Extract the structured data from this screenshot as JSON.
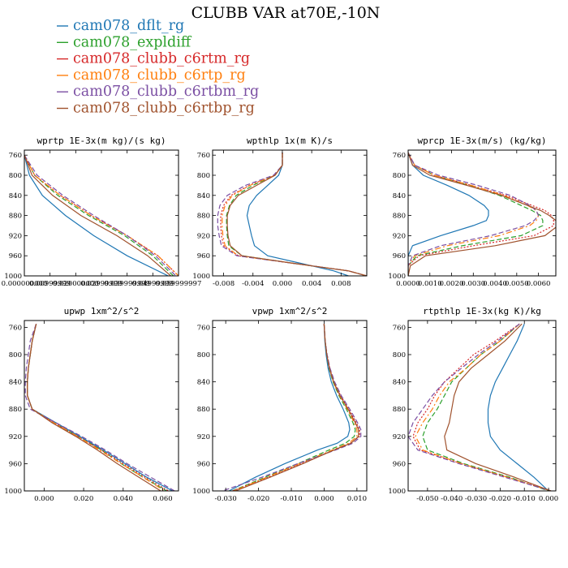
{
  "title": "CLUBB VAR at70E,-10N",
  "chart_data": {
    "series_styles": [
      {
        "name": "cam078_dflt_rg",
        "color": "#1f77b4",
        "dash": "solid"
      },
      {
        "name": "cam078_expldiff",
        "color": "#2ca02c",
        "dash": "dashed"
      },
      {
        "name": "cam078_clubb_c6rtm_rg",
        "color": "#d62728",
        "dash": "dotted"
      },
      {
        "name": "cam078_clubb_c6rtp_rg",
        "color": "#ff7f0e",
        "dash": "dashdot"
      },
      {
        "name": "cam078_clubb_c6rtbm_rg",
        "color": "#7b4fa3",
        "dash": "dashed"
      },
      {
        "name": "cam078_clubb_c6rtbp_rg",
        "color": "#a0522d",
        "dash": "solid"
      }
    ],
    "panels": [
      {
        "type": "line",
        "title": "wprtp  1E-3x(m kg)/(s kg)",
        "xlim": [
          0.0,
          0.06
        ],
        "ylim": [
          1000,
          750
        ],
        "yticks": [
          760,
          800,
          840,
          880,
          920,
          960,
          1000
        ],
        "xticks": [
          0.0,
          0.01,
          0.02,
          0.03,
          0.04,
          0.05,
          0.06
        ],
        "xticklabels": [
          "0.000000000",
          "0.00999999",
          "0.020000000",
          "0.02999999",
          "0.039999999",
          "0.04999999",
          "0.059999997"
        ],
        "y": [
          760,
          800,
          840,
          880,
          920,
          960,
          1000
        ],
        "series": [
          {
            "name": "cam078_dflt_rg",
            "values": [
              0.0,
              0.002,
              0.007,
              0.016,
              0.027,
              0.04,
              0.056
            ]
          },
          {
            "name": "cam078_expldiff",
            "values": [
              0.0,
              0.004,
              0.013,
              0.025,
              0.039,
              0.05,
              0.058
            ]
          },
          {
            "name": "cam078_clubb_c6rtm_rg",
            "values": [
              0.0,
              0.004,
              0.014,
              0.026,
              0.04,
              0.052,
              0.06
            ]
          },
          {
            "name": "cam078_clubb_c6rtp_rg",
            "values": [
              0.0,
              0.004,
              0.014,
              0.026,
              0.04,
              0.052,
              0.06
            ]
          },
          {
            "name": "cam078_clubb_c6rtbm_rg",
            "values": [
              0.0,
              0.005,
              0.015,
              0.027,
              0.04,
              0.051,
              0.059
            ]
          },
          {
            "name": "cam078_clubb_c6rtbp_rg",
            "values": [
              0.0,
              0.003,
              0.011,
              0.022,
              0.036,
              0.048,
              0.057
            ]
          }
        ]
      },
      {
        "type": "line",
        "title": "wpthlp  1x(m K)/s",
        "xlim": [
          -0.0095,
          0.0115
        ],
        "ylim": [
          1000,
          750
        ],
        "yticks": [
          760,
          800,
          840,
          880,
          920,
          960,
          1000
        ],
        "xticks": [
          -0.008,
          -0.004,
          0.0,
          0.004,
          0.008
        ],
        "xticklabels": [
          "-0.008",
          "-0.004",
          "0.000",
          "0.004",
          "0.008"
        ],
        "y": [
          755,
          780,
          800,
          820,
          840,
          860,
          880,
          900,
          920,
          940,
          960,
          975,
          990,
          1000
        ],
        "series": [
          {
            "name": "cam078_dflt_rg",
            "values": [
              0.0,
              0.0,
              -0.0005,
              -0.002,
              -0.0035,
              -0.0045,
              -0.0048,
              -0.0045,
              -0.0042,
              -0.0038,
              -0.002,
              0.0025,
              0.007,
              0.009
            ]
          },
          {
            "name": "cam078_expldiff",
            "values": [
              0.0,
              0.0,
              -0.001,
              -0.004,
              -0.0063,
              -0.0072,
              -0.0076,
              -0.0076,
              -0.0075,
              -0.0073,
              -0.0055,
              0.0015,
              0.009,
              0.0115
            ]
          },
          {
            "name": "cam078_clubb_c6rtm_rg",
            "values": [
              0.0,
              0.0,
              -0.001,
              -0.0045,
              -0.007,
              -0.008,
              -0.0084,
              -0.0084,
              -0.0083,
              -0.008,
              -0.006,
              0.0015,
              0.009,
              0.0115
            ]
          },
          {
            "name": "cam078_clubb_c6rtp_rg",
            "values": [
              0.0,
              0.0,
              -0.001,
              -0.0044,
              -0.0068,
              -0.0078,
              -0.0082,
              -0.0082,
              -0.0081,
              -0.0078,
              -0.006,
              0.0015,
              0.009,
              0.0115
            ]
          },
          {
            "name": "cam078_clubb_c6rtbm_rg",
            "values": [
              0.0,
              0.0,
              -0.0012,
              -0.005,
              -0.0075,
              -0.0085,
              -0.0088,
              -0.0088,
              -0.0086,
              -0.0083,
              -0.0062,
              0.0015,
              0.009,
              0.0115
            ]
          },
          {
            "name": "cam078_clubb_c6rtbp_rg",
            "values": [
              0.0,
              0.0,
              -0.001,
              -0.0035,
              -0.006,
              -0.0071,
              -0.0075,
              -0.0075,
              -0.0074,
              -0.0071,
              -0.0055,
              0.0015,
              0.009,
              0.0115
            ]
          }
        ]
      },
      {
        "type": "line",
        "title": "wprcp  1E-3x(m/s) (kg/kg)",
        "xlim": [
          0.0,
          0.0068
        ],
        "ylim": [
          1000,
          750
        ],
        "yticks": [
          760,
          800,
          840,
          880,
          920,
          960,
          1000
        ],
        "xticks": [
          0.0,
          0.001,
          0.002,
          0.003,
          0.004,
          0.005,
          0.006
        ],
        "xticklabels": [
          "0.0000",
          "0.0010",
          "0.0020",
          "0.0030",
          "0.0040",
          "0.0050",
          "0.0060"
        ],
        "y": [
          755,
          780,
          800,
          820,
          840,
          860,
          870,
          880,
          890,
          900,
          920,
          940,
          960,
          980,
          1000
        ],
        "series": [
          {
            "name": "cam078_dflt_rg",
            "values": [
              0.0,
              0.0002,
              0.0007,
              0.0018,
              0.0028,
              0.0035,
              0.0037,
              0.0037,
              0.0036,
              0.003,
              0.0015,
              0.0002,
              0.0,
              0.0,
              0.0
            ]
          },
          {
            "name": "cam078_expldiff",
            "values": [
              0.0,
              0.0003,
              0.0012,
              0.0028,
              0.0042,
              0.0052,
              0.0057,
              0.0061,
              0.0062,
              0.0062,
              0.0052,
              0.0025,
              0.0004,
              0.0,
              0.0
            ]
          },
          {
            "name": "cam078_clubb_c6rtm_rg",
            "values": [
              0.0,
              0.0003,
              0.0012,
              0.0029,
              0.0045,
              0.0057,
              0.0063,
              0.0066,
              0.0067,
              0.0067,
              0.0058,
              0.003,
              0.0005,
              0.0,
              0.0
            ]
          },
          {
            "name": "cam078_clubb_c6rtp_rg",
            "values": [
              0.0,
              0.0003,
              0.0012,
              0.0029,
              0.0044,
              0.0055,
              0.0059,
              0.006,
              0.0059,
              0.0056,
              0.0042,
              0.0018,
              0.0003,
              0.0,
              0.0
            ]
          },
          {
            "name": "cam078_clubb_c6rtbm_rg",
            "values": [
              0.0,
              0.0003,
              0.0014,
              0.0032,
              0.0047,
              0.0056,
              0.0059,
              0.006,
              0.0058,
              0.0054,
              0.0038,
              0.0015,
              0.0002,
              0.0,
              0.0
            ]
          },
          {
            "name": "cam078_clubb_c6rtbp_rg",
            "values": [
              0.0,
              0.0002,
              0.001,
              0.0027,
              0.0043,
              0.0055,
              0.0061,
              0.0065,
              0.0068,
              0.0069,
              0.0063,
              0.004,
              0.0008,
              0.0001,
              0.0
            ]
          }
        ]
      },
      {
        "type": "line",
        "title": "upwp  1xm^2/s^2",
        "xlim": [
          -0.01,
          0.068
        ],
        "ylim": [
          1000,
          750
        ],
        "yticks": [
          760,
          800,
          840,
          880,
          920,
          960,
          1000
        ],
        "xticks": [
          0.0,
          0.02,
          0.04,
          0.06
        ],
        "xticklabels": [
          "0.000",
          "0.020",
          "0.040",
          "0.060"
        ],
        "y": [
          755,
          780,
          800,
          820,
          840,
          860,
          880,
          900,
          920,
          940,
          960,
          980,
          1000
        ],
        "series": [
          {
            "name": "cam078_dflt_rg",
            "values": [
              -0.004,
              -0.006,
              -0.007,
              -0.008,
              -0.0085,
              -0.0085,
              -0.006,
              0.006,
              0.018,
              0.03,
              0.041,
              0.052,
              0.065
            ]
          },
          {
            "name": "cam078_expldiff",
            "values": [
              -0.004,
              -0.006,
              -0.007,
              -0.008,
              -0.0085,
              -0.0085,
              -0.006,
              0.005,
              0.017,
              0.029,
              0.039,
              0.05,
              0.062
            ]
          },
          {
            "name": "cam078_clubb_c6rtm_rg",
            "values": [
              -0.004,
              -0.006,
              -0.007,
              -0.008,
              -0.0085,
              -0.0085,
              -0.006,
              0.005,
              0.017,
              0.029,
              0.04,
              0.051,
              0.063
            ]
          },
          {
            "name": "cam078_clubb_c6rtp_rg",
            "values": [
              -0.004,
              -0.006,
              -0.007,
              -0.008,
              -0.0085,
              -0.0085,
              -0.006,
              0.005,
              0.017,
              0.028,
              0.039,
              0.05,
              0.061
            ]
          },
          {
            "name": "cam078_clubb_c6rtbm_rg",
            "values": [
              -0.004,
              -0.007,
              -0.008,
              -0.009,
              -0.0095,
              -0.0095,
              -0.007,
              0.006,
              0.019,
              0.031,
              0.042,
              0.054,
              0.066
            ]
          },
          {
            "name": "cam078_clubb_c6rtbp_rg",
            "values": [
              -0.004,
              -0.006,
              -0.007,
              -0.008,
              -0.0085,
              -0.0085,
              -0.006,
              0.004,
              0.016,
              0.027,
              0.037,
              0.048,
              0.059
            ]
          }
        ]
      },
      {
        "type": "line",
        "title": "vpwp  1xm^2/s^2",
        "xlim": [
          -0.034,
          0.013
        ],
        "ylim": [
          1000,
          750
        ],
        "yticks": [
          760,
          800,
          840,
          880,
          920,
          960,
          1000
        ],
        "xticks": [
          -0.03,
          -0.02,
          -0.01,
          0.0,
          0.01
        ],
        "xticklabels": [
          "-0.030",
          "-0.020",
          "-0.010",
          "0.000",
          "0.010"
        ],
        "y": [
          755,
          780,
          800,
          820,
          840,
          860,
          880,
          900,
          910,
          920,
          930,
          940,
          960,
          980,
          1000
        ],
        "series": [
          {
            "name": "cam078_dflt_rg",
            "values": [
              0.0,
              0.0002,
              0.0006,
              0.0012,
              0.0022,
              0.0038,
              0.0058,
              0.0075,
              0.0078,
              0.0072,
              0.004,
              -0.002,
              -0.012,
              -0.021,
              -0.029
            ]
          },
          {
            "name": "cam078_expldiff",
            "values": [
              0.0,
              0.0003,
              0.0008,
              0.0015,
              0.0027,
              0.0045,
              0.0068,
              0.0088,
              0.0095,
              0.0092,
              0.0065,
              0.0015,
              -0.008,
              -0.018,
              -0.028
            ]
          },
          {
            "name": "cam078_clubb_c6rtm_rg",
            "values": [
              0.0,
              0.0003,
              0.0009,
              0.0017,
              0.003,
              0.005,
              0.0075,
              0.0098,
              0.0108,
              0.0108,
              0.008,
              0.003,
              -0.007,
              -0.017,
              -0.028
            ]
          },
          {
            "name": "cam078_clubb_c6rtp_rg",
            "values": [
              0.0,
              0.0003,
              0.0008,
              0.0016,
              0.0028,
              0.0047,
              0.0071,
              0.0092,
              0.01,
              0.01,
              0.0075,
              0.0025,
              -0.0075,
              -0.0175,
              -0.0275
            ]
          },
          {
            "name": "cam078_clubb_c6rtbm_rg",
            "values": [
              0.0,
              0.0003,
              0.0009,
              0.0018,
              0.0032,
              0.0052,
              0.0078,
              0.0102,
              0.0112,
              0.0112,
              0.0088,
              0.0035,
              -0.008,
              -0.019,
              -0.031
            ]
          },
          {
            "name": "cam078_clubb_c6rtbp_rg",
            "values": [
              0.0,
              0.0003,
              0.0008,
              0.0016,
              0.0029,
              0.0048,
              0.0073,
              0.0095,
              0.0105,
              0.0105,
              0.0082,
              0.003,
              -0.0065,
              -0.0165,
              -0.027
            ]
          }
        ]
      },
      {
        "type": "line",
        "title": "rtpthlp  1E-3x(kg K)/kg",
        "xlim": [
          -0.058,
          0.003
        ],
        "ylim": [
          1000,
          750
        ],
        "yticks": [
          760,
          800,
          840,
          880,
          920,
          960,
          1000
        ],
        "xticks": [
          -0.05,
          -0.04,
          -0.03,
          -0.02,
          -0.01,
          0.0
        ],
        "xticklabels": [
          "-0.050",
          "-0.040",
          "-0.030",
          "-0.020",
          "-0.010",
          "0.000"
        ],
        "y": [
          755,
          780,
          800,
          820,
          840,
          860,
          880,
          900,
          920,
          940,
          960,
          980,
          1000
        ],
        "series": [
          {
            "name": "cam078_dflt_rg",
            "values": [
              -0.01,
              -0.013,
              -0.016,
              -0.019,
              -0.022,
              -0.024,
              -0.025,
              -0.025,
              -0.024,
              -0.02,
              -0.013,
              -0.006,
              0.0
            ]
          },
          {
            "name": "cam078_expldiff",
            "values": [
              -0.012,
              -0.02,
              -0.028,
              -0.034,
              -0.04,
              -0.043,
              -0.046,
              -0.05,
              -0.052,
              -0.05,
              -0.035,
              -0.016,
              0.0
            ]
          },
          {
            "name": "cam078_clubb_c6rtm_rg",
            "values": [
              -0.012,
              -0.022,
              -0.031,
              -0.037,
              -0.043,
              -0.047,
              -0.05,
              -0.054,
              -0.056,
              -0.053,
              -0.036,
              -0.017,
              0.001
            ]
          },
          {
            "name": "cam078_clubb_c6rtp_rg",
            "values": [
              -0.012,
              -0.02,
              -0.028,
              -0.034,
              -0.041,
              -0.045,
              -0.048,
              -0.052,
              -0.055,
              -0.052,
              -0.036,
              -0.017,
              0.001
            ]
          },
          {
            "name": "cam078_clubb_c6rtbm_rg",
            "values": [
              -0.012,
              -0.021,
              -0.029,
              -0.036,
              -0.043,
              -0.048,
              -0.052,
              -0.056,
              -0.058,
              -0.054,
              -0.037,
              -0.018,
              0.001
            ]
          },
          {
            "name": "cam078_clubb_c6rtbp_rg",
            "values": [
              -0.011,
              -0.018,
              -0.025,
              -0.032,
              -0.037,
              -0.039,
              -0.04,
              -0.041,
              -0.043,
              -0.042,
              -0.03,
              -0.014,
              0.001
            ]
          }
        ]
      }
    ]
  }
}
